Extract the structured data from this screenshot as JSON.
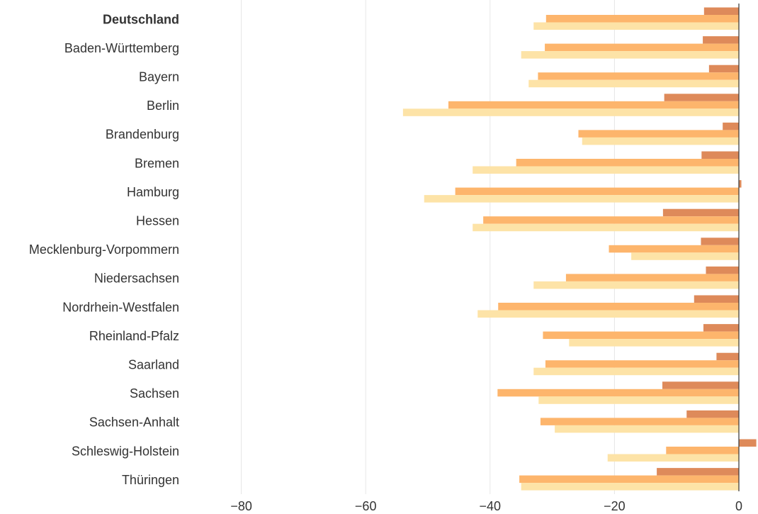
{
  "chart_data": {
    "type": "bar",
    "orientation": "horizontal",
    "title": "",
    "xlabel": "",
    "ylabel": "",
    "xlim": [
      -91,
      2.5
    ],
    "xticks": [
      -80,
      -60,
      -40,
      -20,
      0
    ],
    "xtick_labels": [
      "−80",
      "−60",
      "−40",
      "−20",
      "0"
    ],
    "grid": true,
    "legend": "none",
    "bold_categories": [
      "Deutschland"
    ],
    "categories": [
      "Deutschland",
      "Baden-Württemberg",
      "Bayern",
      "Berlin",
      "Brandenburg",
      "Bremen",
      "Hamburg",
      "Hessen",
      "Mecklenburg-Vorpommern",
      "Niedersachsen",
      "Nordrhein-Westfalen",
      "Rheinland-Pfalz",
      "Saarland",
      "Sachsen",
      "Sachsen-Anhalt",
      "Schleswig-Holstein",
      "Thüringen"
    ],
    "series": [
      {
        "color": "#de8a5a",
        "values": [
          -5.6,
          -5.8,
          -4.8,
          -12.0,
          -2.6,
          -6.0,
          0.4,
          -12.2,
          -6.1,
          -5.3,
          -7.2,
          -5.7,
          -3.6,
          -12.3,
          -8.4,
          2.8,
          -13.2
        ]
      },
      {
        "color": "#fdb56c",
        "values": [
          -31.0,
          -31.2,
          -32.3,
          -46.7,
          -25.8,
          -35.8,
          -45.6,
          -41.1,
          -20.9,
          -27.8,
          -38.7,
          -31.5,
          -31.1,
          -38.8,
          -31.9,
          -11.7,
          -35.3
        ]
      },
      {
        "color": "#fde3a7",
        "values": [
          -33.0,
          -35.0,
          -33.8,
          -54.0,
          -25.2,
          -42.8,
          -50.6,
          -42.8,
          -17.3,
          -33.0,
          -42.0,
          -27.3,
          -33.0,
          -32.2,
          -29.6,
          -21.1,
          -35.0
        ]
      }
    ]
  }
}
